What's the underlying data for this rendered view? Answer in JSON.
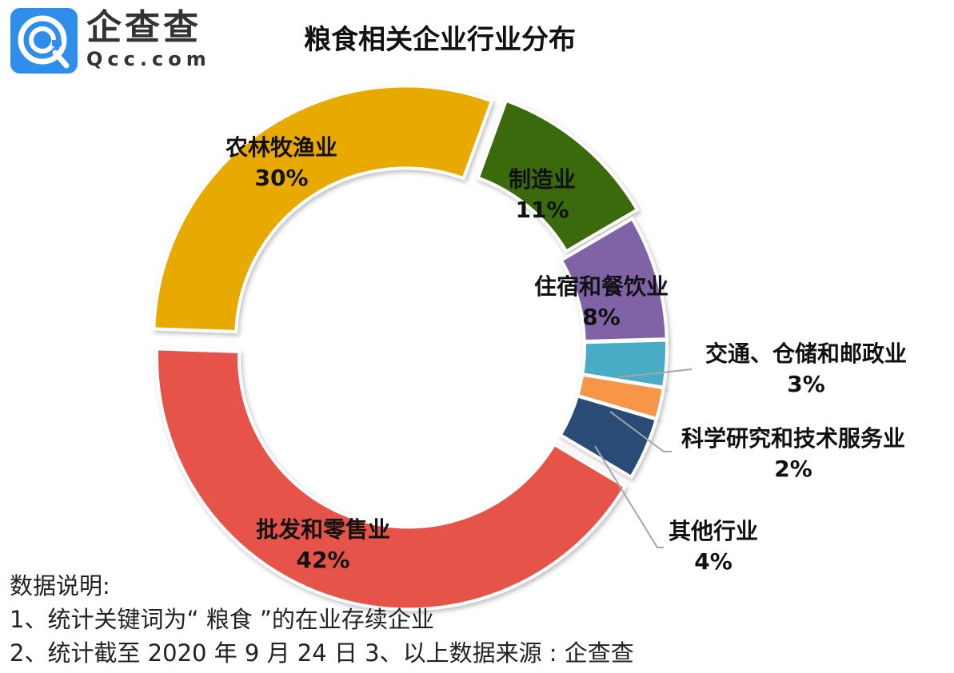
{
  "logo": {
    "name": "企查查",
    "domain": "Qcc.com"
  },
  "chart_data": {
    "type": "pie",
    "title": "粮食相关企业行业分布",
    "donut": true,
    "slices": [
      {
        "label": "制造业",
        "value": 11,
        "pct": "11%",
        "color": "#3a6b0c"
      },
      {
        "label": "住宿和餐饮业",
        "value": 8,
        "pct": "8%",
        "color": "#7f64a6"
      },
      {
        "label": "交通、仓储和邮政业",
        "value": 3,
        "pct": "3%",
        "color": "#4aacc6"
      },
      {
        "label": "科学研究和技术服务业",
        "value": 2,
        "pct": "2%",
        "color": "#f79646"
      },
      {
        "label": "其他行业",
        "value": 4,
        "pct": "4%",
        "color": "#2a4b74"
      },
      {
        "label": "批发和零售业",
        "value": 42,
        "pct": "42%",
        "color": "#e6524a"
      },
      {
        "label": "农林牧渔业",
        "value": 30,
        "pct": "30%",
        "color": "#e8a900"
      }
    ]
  },
  "notes": {
    "heading": "数据说明:",
    "line1": "1、统计关键词为“ 粮食 ”的在业存续企业",
    "line2": "2、统计截至 2020 年 9 月 24 日 3、以上数据来源 : 企查查"
  }
}
